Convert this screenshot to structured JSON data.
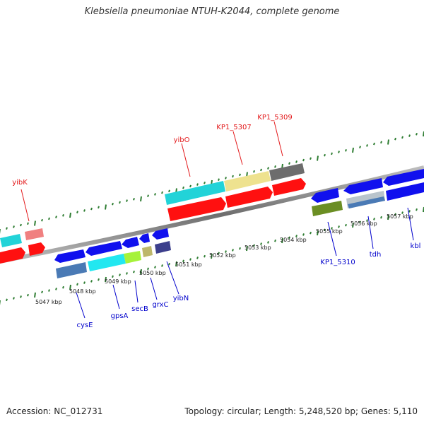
{
  "title": "Klebsiella pneumoniae NTUH-K2044, complete genome",
  "footer": {
    "accession": "Accession: NC_012731",
    "topology": "Topology: circular; Length: 5,248,520 bp; Genes: 5,110"
  },
  "colors": {
    "forward_label": "#e31a1c",
    "reverse_label": "#0000cc",
    "tick": "#2e7d32",
    "backbone": "#8a8a8a"
  },
  "ticks": [
    "5047 kbp",
    "5048 kbp",
    "5049 kbp",
    "5050 kbp",
    "5051 kbp",
    "5052 kbp",
    "5053 kbp",
    "5054 kbp",
    "5055 kbp",
    "5056 kbp",
    "5057 kbp"
  ],
  "forward_labels": [
    "yibK",
    "yibO",
    "KP1_5307",
    "KP1_5309"
  ],
  "reverse_labels": [
    "cysE",
    "gpsA",
    "secB",
    "grxC",
    "yibN",
    "KP1_5310",
    "tdh",
    "kbl"
  ]
}
